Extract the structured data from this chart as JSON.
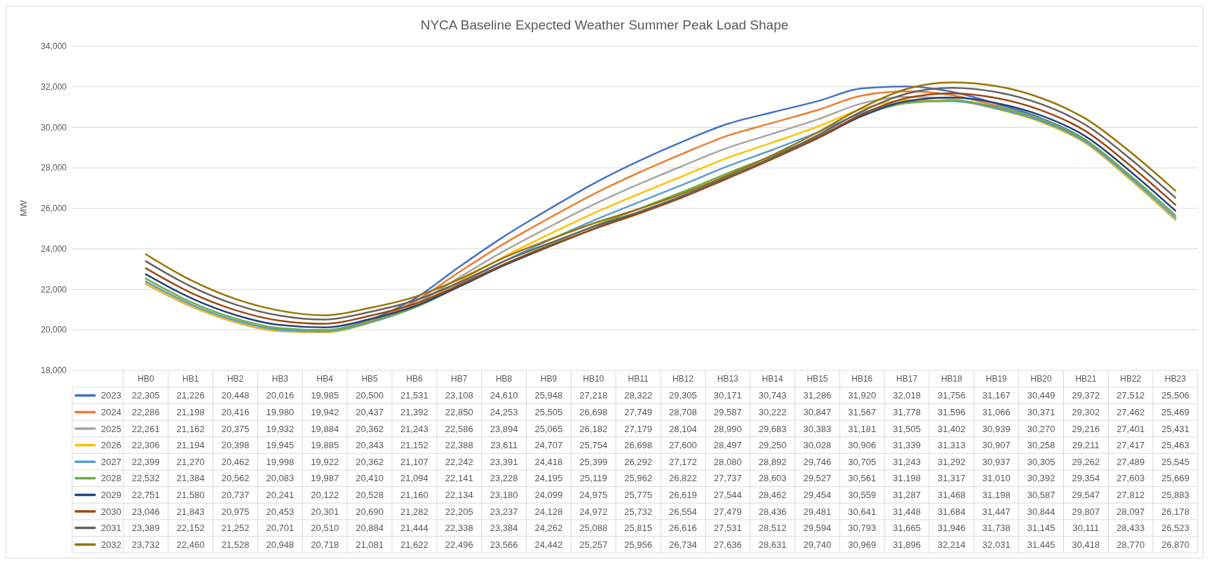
{
  "chart_data": {
    "type": "line",
    "title": "NYCA Baseline Expected Weather Summer Peak Load Shape",
    "ylabel": "MW",
    "categories": [
      "HB0",
      "HB1",
      "HB2",
      "HB3",
      "HB4",
      "HB5",
      "HB6",
      "HB7",
      "HB8",
      "HB9",
      "HB10",
      "HB11",
      "HB12",
      "HB13",
      "HB14",
      "HB15",
      "HB16",
      "HB17",
      "HB18",
      "HB19",
      "HB20",
      "HB21",
      "HB22",
      "HB23"
    ],
    "ylim": [
      18000,
      34000
    ],
    "yticks": [
      {
        "value": 18000,
        "label": "18,000"
      },
      {
        "value": 20000,
        "label": "20,000"
      },
      {
        "value": 22000,
        "label": "22,000"
      },
      {
        "value": 24000,
        "label": "24,000"
      },
      {
        "value": 26000,
        "label": "26,000"
      },
      {
        "value": 28000,
        "label": "28,000"
      },
      {
        "value": 30000,
        "label": "30,000"
      },
      {
        "value": 32000,
        "label": "32,000"
      },
      {
        "value": 34000,
        "label": "34,000"
      }
    ],
    "grid": "y",
    "legend": "bottom",
    "marker": "none",
    "line_style": "solid",
    "series": [
      {
        "name": "2023",
        "color": "#4472c4",
        "values": [
          22305,
          21226,
          20448,
          20016,
          19985,
          20500,
          21531,
          23108,
          24610,
          25948,
          27218,
          28322,
          29305,
          30171,
          30743,
          31286,
          31920,
          32018,
          31756,
          31167,
          30449,
          29372,
          27512,
          25506
        ],
        "value_labels": [
          "22,305",
          "21,226",
          "20,448",
          "20,016",
          "19,985",
          "20,500",
          "21,531",
          "23,108",
          "24,610",
          "25,948",
          "27,218",
          "28,322",
          "29,305",
          "30,171",
          "30,743",
          "31,286",
          "31,920",
          "32,018",
          "31,756",
          "31,167",
          "30,449",
          "29,372",
          "27,512",
          "25,506"
        ]
      },
      {
        "name": "2024",
        "color": "#ed7d31",
        "values": [
          22286,
          21198,
          20416,
          19980,
          19942,
          20437,
          21392,
          22850,
          24253,
          25505,
          26698,
          27749,
          28708,
          29587,
          30222,
          30847,
          31567,
          31778,
          31596,
          31066,
          30371,
          29302,
          27462,
          25469
        ],
        "value_labels": [
          "22,286",
          "21,198",
          "20,416",
          "19,980",
          "19,942",
          "20,437",
          "21,392",
          "22,850",
          "24,253",
          "25,505",
          "26,698",
          "27,749",
          "28,708",
          "29,587",
          "30,222",
          "30,847",
          "31,567",
          "31,778",
          "31,596",
          "31,066",
          "30,371",
          "29,302",
          "27,462",
          "25,469"
        ]
      },
      {
        "name": "2025",
        "color": "#a5a5a5",
        "values": [
          22261,
          21162,
          20375,
          19932,
          19884,
          20362,
          21243,
          22586,
          23894,
          25065,
          26182,
          27179,
          28104,
          28990,
          29683,
          30383,
          31181,
          31505,
          31402,
          30939,
          30270,
          29216,
          27401,
          25431
        ],
        "value_labels": [
          "22,261",
          "21,162",
          "20,375",
          "19,932",
          "19,884",
          "20,362",
          "21,243",
          "22,586",
          "23,894",
          "25,065",
          "26,182",
          "27,179",
          "28,104",
          "28,990",
          "29,683",
          "30,383",
          "31,181",
          "31,505",
          "31,402",
          "30,939",
          "30,270",
          "29,216",
          "27,401",
          "25,431"
        ]
      },
      {
        "name": "2026",
        "color": "#ffc000",
        "values": [
          22306,
          21194,
          20398,
          19945,
          19885,
          20343,
          21152,
          22388,
          23611,
          24707,
          25754,
          26698,
          27600,
          28497,
          29250,
          30028,
          30906,
          31339,
          31313,
          30907,
          30258,
          29211,
          27417,
          25463
        ],
        "value_labels": [
          "22,306",
          "21,194",
          "20,398",
          "19,945",
          "19,885",
          "20,343",
          "21,152",
          "22,388",
          "23,611",
          "24,707",
          "25,754",
          "26,698",
          "27,600",
          "28,497",
          "29,250",
          "30,028",
          "30,906",
          "31,339",
          "31,313",
          "30,907",
          "30,258",
          "29,211",
          "27,417",
          "25,463"
        ]
      },
      {
        "name": "2027",
        "color": "#5b9bd5",
        "values": [
          22399,
          21270,
          20462,
          19998,
          19922,
          20362,
          21107,
          22242,
          23391,
          24418,
          25399,
          26292,
          27172,
          28080,
          28892,
          29746,
          30705,
          31243,
          31292,
          30937,
          30305,
          29262,
          27489,
          25545
        ],
        "value_labels": [
          "22,399",
          "21,270",
          "20,462",
          "19,998",
          "19,922",
          "20,362",
          "21,107",
          "22,242",
          "23,391",
          "24,418",
          "25,399",
          "26,292",
          "27,172",
          "28,080",
          "28,892",
          "29,746",
          "30,705",
          "31,243",
          "31,292",
          "30,937",
          "30,305",
          "29,262",
          "27,489",
          "25,545"
        ]
      },
      {
        "name": "2028",
        "color": "#70ad47",
        "values": [
          22532,
          21384,
          20562,
          20083,
          19987,
          20410,
          21094,
          22141,
          23228,
          24195,
          25119,
          25962,
          26822,
          27737,
          28603,
          29527,
          30561,
          31198,
          31317,
          31010,
          30392,
          29354,
          27603,
          25669
        ],
        "value_labels": [
          "22,532",
          "21,384",
          "20,562",
          "20,083",
          "19,987",
          "20,410",
          "21,094",
          "22,141",
          "23,228",
          "24,195",
          "25,119",
          "25,962",
          "26,822",
          "27,737",
          "28,603",
          "29,527",
          "30,561",
          "31,198",
          "31,317",
          "31,010",
          "30,392",
          "29,354",
          "27,603",
          "25,669"
        ]
      },
      {
        "name": "2029",
        "color": "#264478",
        "values": [
          22751,
          21580,
          20737,
          20241,
          20122,
          20528,
          21160,
          22134,
          23180,
          24099,
          24975,
          25775,
          26619,
          27544,
          28462,
          29454,
          30559,
          31287,
          31468,
          31198,
          30587,
          29547,
          27812,
          25883
        ],
        "value_labels": [
          "22,751",
          "21,580",
          "20,737",
          "20,241",
          "20,122",
          "20,528",
          "21,160",
          "22,134",
          "23,180",
          "24,099",
          "24,975",
          "25,775",
          "26,619",
          "27,544",
          "28,462",
          "29,454",
          "30,559",
          "31,287",
          "31,468",
          "31,198",
          "30,587",
          "29,547",
          "27,812",
          "25,883"
        ]
      },
      {
        "name": "2030",
        "color": "#9e480e",
        "values": [
          23046,
          21843,
          20975,
          20453,
          20301,
          20690,
          21282,
          22205,
          23237,
          24128,
          24972,
          25732,
          26554,
          27479,
          28436,
          29481,
          30641,
          31448,
          31684,
          31447,
          30844,
          29807,
          28097,
          26178
        ],
        "value_labels": [
          "23,046",
          "21,843",
          "20,975",
          "20,453",
          "20,301",
          "20,690",
          "21,282",
          "22,205",
          "23,237",
          "24,128",
          "24,972",
          "25,732",
          "26,554",
          "27,479",
          "28,436",
          "29,481",
          "30,641",
          "31,448",
          "31,684",
          "31,447",
          "30,844",
          "29,807",
          "28,097",
          "26,178"
        ]
      },
      {
        "name": "2031",
        "color": "#636363",
        "values": [
          23389,
          22152,
          21252,
          20701,
          20510,
          20884,
          21444,
          22338,
          23384,
          24262,
          25088,
          25815,
          26616,
          27531,
          28512,
          29594,
          30793,
          31665,
          31946,
          31738,
          31145,
          30111,
          28433,
          26523
        ],
        "value_labels": [
          "23,389",
          "22,152",
          "21,252",
          "20,701",
          "20,510",
          "20,884",
          "21,444",
          "22,338",
          "23,384",
          "24,262",
          "25,088",
          "25,815",
          "26,616",
          "27,531",
          "28,512",
          "29,594",
          "30,793",
          "31,665",
          "31,946",
          "31,738",
          "31,145",
          "30,111",
          "28,433",
          "26,523"
        ]
      },
      {
        "name": "2032",
        "color": "#997300",
        "values": [
          23732,
          22460,
          21528,
          20948,
          20718,
          21081,
          21622,
          22496,
          23566,
          24442,
          25257,
          25956,
          26734,
          27636,
          28631,
          29740,
          30969,
          31896,
          32214,
          32031,
          31445,
          30418,
          28770,
          26870
        ],
        "value_labels": [
          "23,732",
          "22,460",
          "21,528",
          "20,948",
          "20,718",
          "21,081",
          "21,622",
          "22,496",
          "23,566",
          "24,442",
          "25,257",
          "25,956",
          "26,734",
          "27,636",
          "28,631",
          "29,740",
          "30,969",
          "31,896",
          "32,214",
          "32,031",
          "31,445",
          "30,418",
          "28,770",
          "26,870"
        ]
      }
    ]
  }
}
